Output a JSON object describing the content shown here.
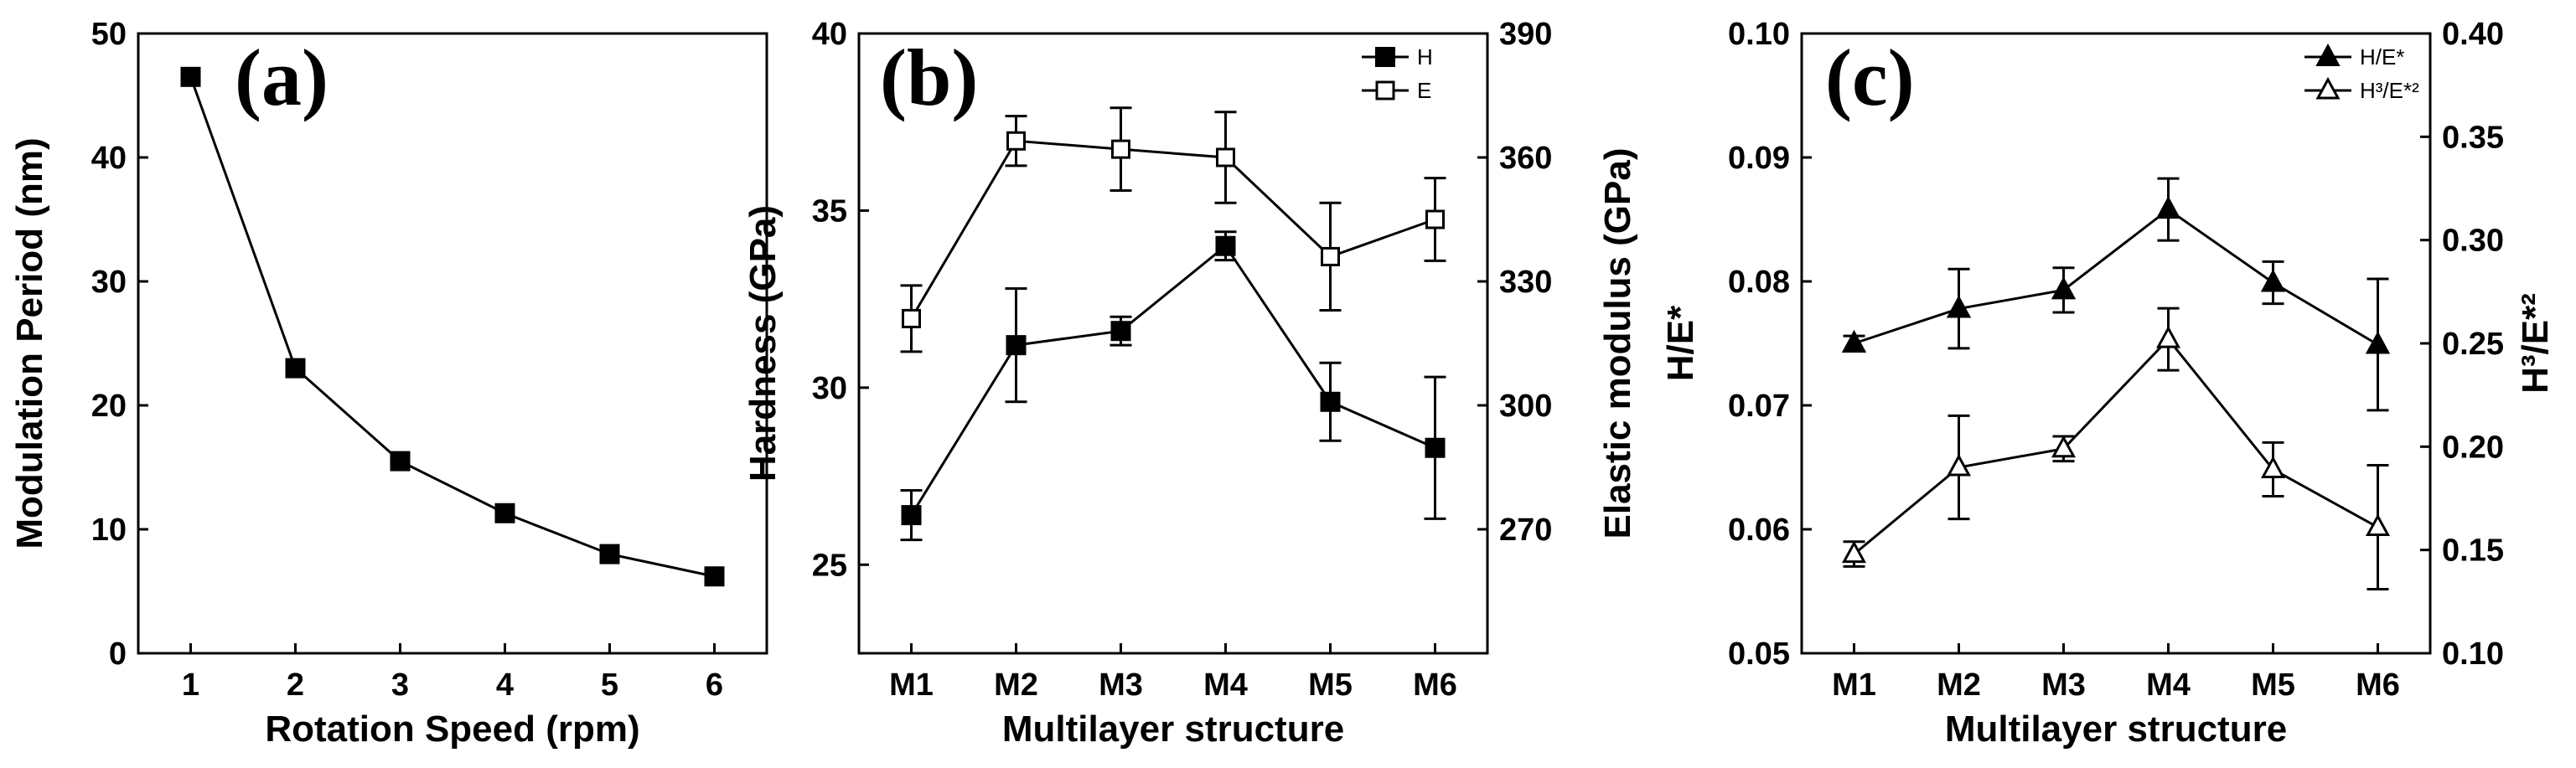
{
  "chart_data": [
    {
      "id": "a",
      "type": "line",
      "panel_label": "(a)",
      "title": "",
      "xlabel": "Rotation Speed (rpm)",
      "ylabel": "Modulation Period (nm)",
      "xlim": [
        0.5,
        6.5
      ],
      "ylim": [
        0,
        50
      ],
      "xticks": [
        1,
        2,
        3,
        4,
        5,
        6
      ],
      "yticks": [
        0,
        10,
        20,
        30,
        40,
        50
      ],
      "series": [
        {
          "name": "Modulation Period",
          "marker": "square-filled",
          "x": [
            1,
            2,
            3,
            4,
            5,
            6
          ],
          "values": [
            46.5,
            23.0,
            15.5,
            11.3,
            8.0,
            6.2
          ]
        }
      ]
    },
    {
      "id": "b",
      "type": "line",
      "panel_label": "(b)",
      "title": "",
      "xlabel": "Multilayer structure",
      "ylabel": "Hardness (GPa)",
      "ylabel_right": "Elastic modulus (GPa)",
      "categories": [
        "M1",
        "M2",
        "M3",
        "M4",
        "M5",
        "M6"
      ],
      "ylim": [
        22.5,
        40
      ],
      "yticks": [
        25,
        30,
        35,
        40
      ],
      "ylim_right": [
        240,
        390
      ],
      "yticks_right": [
        270,
        300,
        330,
        360,
        390
      ],
      "legend_position": "top-right",
      "series": [
        {
          "name": "H",
          "axis": "left",
          "marker": "square-filled",
          "values": [
            26.4,
            31.2,
            31.6,
            34.0,
            29.6,
            28.3
          ],
          "errors": [
            0.7,
            1.6,
            0.4,
            0.4,
            1.1,
            2.0
          ]
        },
        {
          "name": "E",
          "axis": "right",
          "marker": "square-open",
          "values": [
            321,
            364,
            362,
            360,
            336,
            345
          ],
          "errors": [
            8,
            6,
            10,
            11,
            13,
            10
          ]
        }
      ]
    },
    {
      "id": "c",
      "type": "line",
      "panel_label": "(c)",
      "title": "",
      "xlabel": "Multilayer structure",
      "ylabel": "H/E*",
      "ylabel_right": "H³/E*²",
      "categories": [
        "M1",
        "M2",
        "M3",
        "M4",
        "M5",
        "M6"
      ],
      "ylim": [
        0.05,
        0.1
      ],
      "yticks": [
        "0.05",
        "0.06",
        "0.07",
        "0.08",
        "0.09",
        "0.10"
      ],
      "ylim_right": [
        0.1,
        0.4
      ],
      "yticks_right": [
        "0.10",
        "0.15",
        "0.20",
        "0.25",
        "0.30",
        "0.35",
        "0.40"
      ],
      "legend_position": "top-right",
      "series": [
        {
          "name": "H/E*",
          "axis": "left",
          "marker": "triangle-filled",
          "values": [
            0.075,
            0.0778,
            0.0793,
            0.0858,
            0.0799,
            0.0749
          ],
          "errors": [
            0.0006,
            0.0032,
            0.0018,
            0.0025,
            0.0017,
            0.0053
          ]
        },
        {
          "name": "H³/E*²",
          "axis": "right",
          "marker": "triangle-open",
          "values": [
            0.148,
            0.19,
            0.199,
            0.252,
            0.189,
            0.161
          ],
          "errors": [
            0.006,
            0.025,
            0.006,
            0.015,
            0.013,
            0.03
          ]
        }
      ]
    }
  ]
}
